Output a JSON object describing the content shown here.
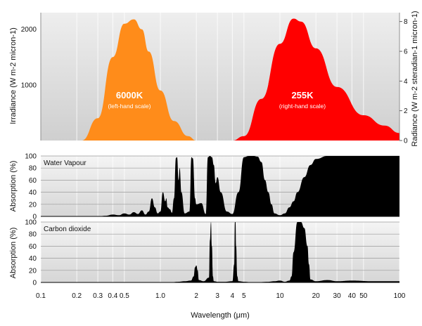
{
  "chart_data": [
    {
      "type": "area",
      "panel": "emission",
      "xscale": "log",
      "xlim": [
        0.1,
        100
      ],
      "ylabel_left": "Irradiance (W m-2 micron-1)",
      "ylabel_right": "Radiance (W m-2 steradian-1 micron-1)",
      "yticks_left": [
        "1000",
        "2000"
      ],
      "ylim_left": [
        0,
        2300
      ],
      "yticks_right": [
        "0",
        "2",
        "4",
        "6",
        "8"
      ],
      "ylim_right": [
        0,
        8.6
      ],
      "series": [
        {
          "name": "6000K",
          "sublabel": "(left-hand scale)",
          "color": "#ff8c1a",
          "axis": "left",
          "x": [
            0.22,
            0.3,
            0.4,
            0.5,
            0.6,
            0.7,
            0.8,
            1.0,
            1.3,
            1.7,
            2.0
          ],
          "y": [
            0,
            400,
            1500,
            2100,
            2180,
            2000,
            1600,
            900,
            350,
            80,
            0
          ]
        },
        {
          "name": "255K",
          "sublabel": "(right-hand scale)",
          "color": "#ff0000",
          "axis": "right",
          "x": [
            4.0,
            5.0,
            7.0,
            10.0,
            13.0,
            15.0,
            20.0,
            30.0,
            50.0,
            75.0,
            100.0
          ],
          "y": [
            0,
            0.3,
            2.8,
            6.5,
            8.2,
            8.0,
            6.2,
            3.6,
            1.7,
            1.0,
            0.5
          ]
        }
      ]
    },
    {
      "type": "area",
      "panel": "water",
      "title": "Water Vapour",
      "ylabel": "Absorption (%)",
      "ylim": [
        0,
        100
      ],
      "yticks": [
        "0",
        "20",
        "40",
        "60",
        "80",
        "100"
      ],
      "color": "#000000",
      "x": [
        0.3,
        0.35,
        0.4,
        0.45,
        0.5,
        0.55,
        0.6,
        0.65,
        0.7,
        0.75,
        0.8,
        0.85,
        0.9,
        0.95,
        1.0,
        1.05,
        1.1,
        1.12,
        1.15,
        1.2,
        1.25,
        1.3,
        1.35,
        1.38,
        1.42,
        1.45,
        1.5,
        1.6,
        1.75,
        1.82,
        1.87,
        1.95,
        2.0,
        2.2,
        2.4,
        2.5,
        2.6,
        2.7,
        2.8,
        2.9,
        3.0,
        3.2,
        3.6,
        4.0,
        4.5,
        5.0,
        5.5,
        6.0,
        6.5,
        7.0,
        7.5,
        8.0,
        8.5,
        9.0,
        10.0,
        11.0,
        12.0,
        13.0,
        14.0,
        16.0,
        18.0,
        20.0,
        25.0,
        30.0,
        40.0,
        60.0,
        100.0
      ],
      "y": [
        0,
        1,
        3,
        2,
        5,
        3,
        7,
        4,
        10,
        3,
        8,
        30,
        15,
        5,
        8,
        40,
        25,
        30,
        15,
        12,
        6,
        30,
        97,
        98,
        60,
        80,
        40,
        5,
        8,
        98,
        96,
        30,
        20,
        22,
        4,
        98,
        100,
        98,
        85,
        55,
        65,
        40,
        8,
        4,
        40,
        98,
        100,
        100,
        99,
        90,
        60,
        40,
        20,
        5,
        2,
        5,
        15,
        25,
        40,
        65,
        85,
        95,
        100,
        100,
        100,
        100,
        100
      ]
    },
    {
      "type": "area",
      "panel": "co2",
      "title": "Carbon dioxide",
      "ylabel": "Absorption (%)",
      "ylim": [
        0,
        100
      ],
      "yticks": [
        "0",
        "20",
        "40",
        "60",
        "80",
        "100"
      ],
      "xlabel": "Wavelength (μm)",
      "xticks": [
        "0.1",
        "0.2",
        "0.3",
        "0.4",
        "0.5",
        "1.0",
        "2",
        "3",
        "4",
        "5",
        "10",
        "20",
        "30",
        "40",
        "50",
        "100"
      ],
      "xtick_values": [
        0.1,
        0.2,
        0.3,
        0.4,
        0.5,
        1.0,
        2,
        3,
        4,
        5,
        10,
        20,
        30,
        40,
        50,
        100
      ],
      "color": "#000000",
      "x": [
        1.0,
        1.2,
        1.4,
        1.6,
        1.8,
        1.9,
        1.95,
        2.0,
        2.05,
        2.1,
        2.3,
        2.55,
        2.6,
        2.65,
        2.7,
        2.75,
        2.8,
        3.0,
        3.5,
        4.0,
        4.15,
        4.2,
        4.25,
        4.3,
        4.4,
        4.5,
        5.0,
        6.0,
        8.0,
        9.0,
        10.0,
        11.0,
        12.0,
        12.5,
        13.0,
        14.0,
        15.0,
        16.0,
        17.0,
        17.5,
        18.0,
        20.0,
        25.0,
        30.0,
        40.0,
        60.0,
        100.0
      ],
      "y": [
        0,
        0,
        1,
        2,
        3,
        10,
        25,
        28,
        20,
        4,
        2,
        8,
        70,
        100,
        60,
        10,
        2,
        1,
        1,
        2,
        30,
        100,
        100,
        60,
        10,
        2,
        1,
        0,
        1,
        2,
        3,
        1,
        3,
        10,
        50,
        100,
        100,
        90,
        60,
        30,
        5,
        2,
        4,
        2,
        3,
        2,
        2
      ]
    }
  ]
}
